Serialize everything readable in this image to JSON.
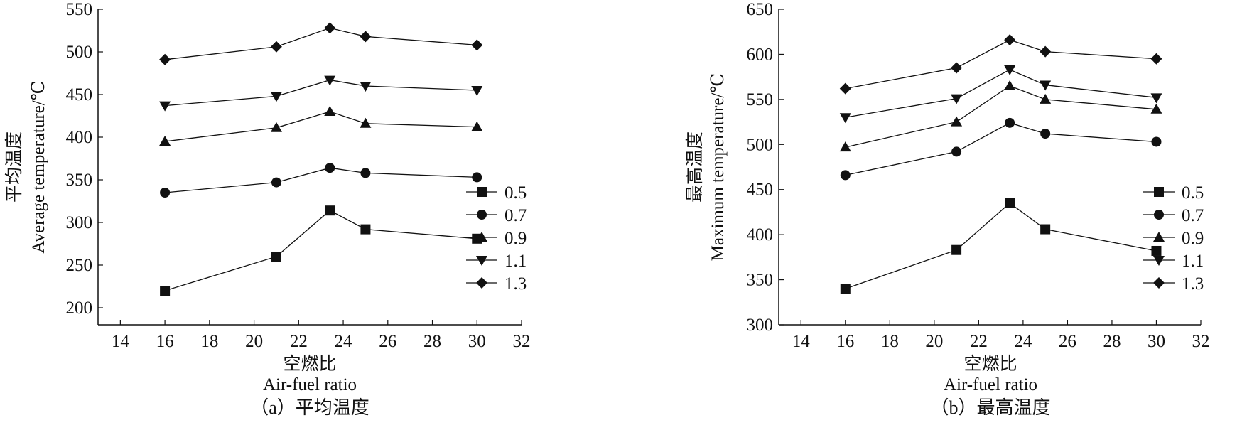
{
  "chart_data": [
    {
      "type": "line",
      "panel_caption": "（a）平均温度",
      "xlabel_cn": "空燃比",
      "xlabel_en": "Air-fuel ratio",
      "ylabel_cn": "平均温度",
      "ylabel_en": "Average temperature/℃",
      "xlim": [
        13,
        32
      ],
      "xticks": [
        14,
        16,
        18,
        20,
        22,
        24,
        26,
        28,
        30,
        32
      ],
      "ylim": [
        180,
        550
      ],
      "yticks": [
        200,
        250,
        300,
        350,
        400,
        450,
        500,
        550
      ],
      "x": [
        16,
        21,
        23.4,
        25,
        30
      ],
      "series": [
        {
          "name": "0.5",
          "marker": "square",
          "values": [
            220,
            260,
            314,
            292,
            281
          ]
        },
        {
          "name": "0.7",
          "marker": "circle",
          "values": [
            335,
            347,
            364,
            358,
            353
          ]
        },
        {
          "name": "0.9",
          "marker": "triangle-up",
          "values": [
            395,
            411,
            430,
            416,
            412
          ]
        },
        {
          "name": "1.1",
          "marker": "triangle-down",
          "values": [
            437,
            448,
            467,
            460,
            455
          ]
        },
        {
          "name": "1.3",
          "marker": "diamond",
          "values": [
            491,
            506,
            528,
            518,
            508
          ]
        }
      ],
      "legend_position": "right",
      "grid": false
    },
    {
      "type": "line",
      "panel_caption": "（b）最高温度",
      "xlabel_cn": "空燃比",
      "xlabel_en": "Air-fuel ratio",
      "ylabel_cn": "最高温度",
      "ylabel_en": "Maximum temperature/℃",
      "xlim": [
        13,
        32
      ],
      "xticks": [
        14,
        16,
        18,
        20,
        22,
        24,
        26,
        28,
        30,
        32
      ],
      "ylim": [
        300,
        650
      ],
      "yticks": [
        300,
        350,
        400,
        450,
        500,
        550,
        600,
        650
      ],
      "x": [
        16,
        21,
        23.4,
        25,
        30
      ],
      "series": [
        {
          "name": "0.5",
          "marker": "square",
          "values": [
            340,
            383,
            435,
            406,
            382
          ]
        },
        {
          "name": "0.7",
          "marker": "circle",
          "values": [
            466,
            492,
            524,
            512,
            503
          ]
        },
        {
          "name": "0.9",
          "marker": "triangle-up",
          "values": [
            497,
            525,
            565,
            550,
            539
          ]
        },
        {
          "name": "1.1",
          "marker": "triangle-down",
          "values": [
            530,
            551,
            583,
            566,
            552
          ]
        },
        {
          "name": "1.3",
          "marker": "diamond",
          "values": [
            562,
            585,
            616,
            603,
            595
          ]
        }
      ],
      "legend_position": "right",
      "grid": false
    }
  ]
}
